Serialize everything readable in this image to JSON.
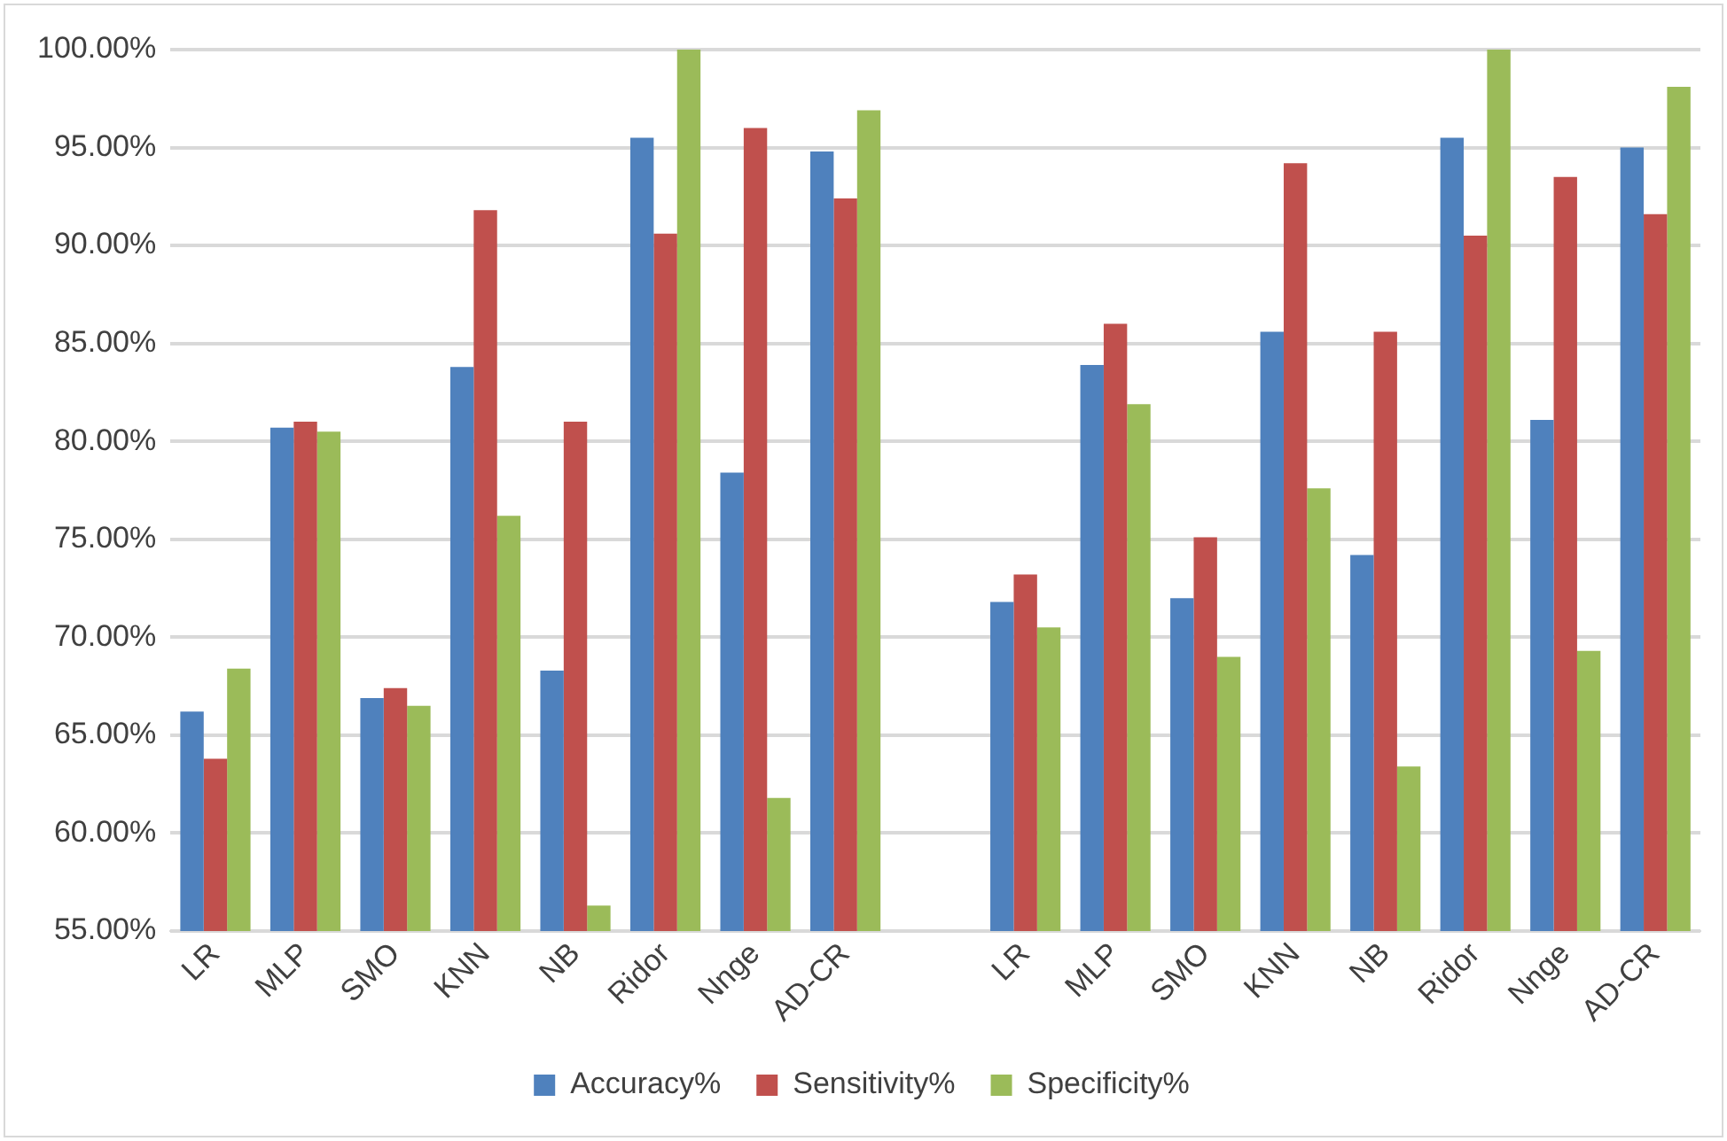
{
  "chart_data": {
    "type": "bar",
    "categories": [
      "LR",
      "MLP",
      "SMO",
      "KNN",
      "NB",
      "Ridor",
      "Nnge",
      "AD-CR",
      null,
      "LR",
      "MLP",
      "SMO",
      "KNN",
      "NB",
      "Ridor",
      "Nnge",
      "AD-CR"
    ],
    "series": [
      {
        "name": "Accuracy%",
        "color": "#4f81bd",
        "values": [
          66.2,
          80.7,
          66.9,
          83.8,
          68.3,
          95.5,
          78.4,
          94.8,
          null,
          71.8,
          83.9,
          72.0,
          85.6,
          74.2,
          95.5,
          81.1,
          95.0
        ]
      },
      {
        "name": "Sensitivity%",
        "color": "#c0504d",
        "values": [
          63.8,
          81.0,
          67.4,
          91.8,
          81.0,
          90.6,
          96.0,
          92.4,
          null,
          73.2,
          86.0,
          75.1,
          94.2,
          85.6,
          90.5,
          93.5,
          91.6
        ]
      },
      {
        "name": "Specificity%",
        "color": "#9bbb59",
        "values": [
          68.4,
          80.5,
          66.5,
          76.2,
          56.3,
          100,
          61.8,
          96.9,
          null,
          70.5,
          81.9,
          69.0,
          77.6,
          63.4,
          100,
          69.3,
          98.1
        ]
      }
    ],
    "ylim": [
      55,
      100
    ],
    "yticks": [
      {
        "value": 55,
        "label": "55.00%"
      },
      {
        "value": 60,
        "label": "60.00%"
      },
      {
        "value": 65,
        "label": "65.00%"
      },
      {
        "value": 70,
        "label": "70.00%"
      },
      {
        "value": 75,
        "label": "75.00%"
      },
      {
        "value": 80,
        "label": "80.00%"
      },
      {
        "value": 85,
        "label": "85.00%"
      },
      {
        "value": 90,
        "label": "90.00%"
      },
      {
        "value": 95,
        "label": "95.00%"
      },
      {
        "value": 100,
        "label": "100.00%"
      }
    ],
    "grid": "y",
    "legend": "bottom"
  }
}
